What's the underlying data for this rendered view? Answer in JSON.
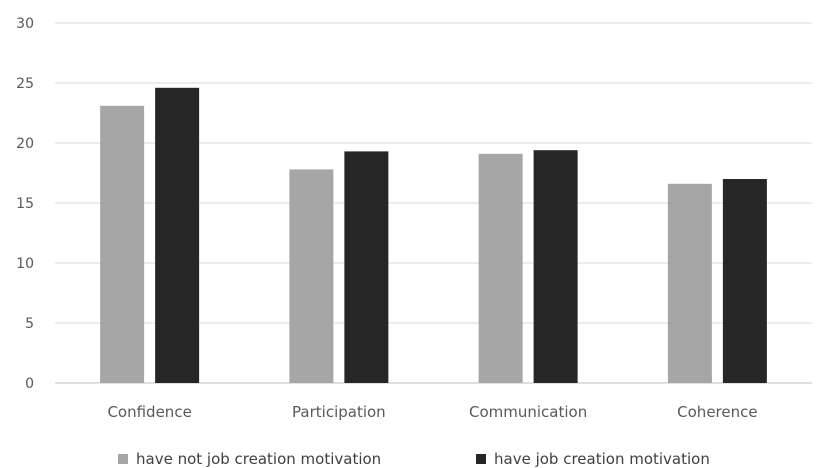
{
  "chart_data": {
    "type": "bar",
    "title": "",
    "xlabel": "",
    "ylabel": "",
    "categories": [
      "Confidence",
      "Participation",
      "Communication",
      "Coherence"
    ],
    "series": [
      {
        "name": "have not job creation motivation",
        "values": [
          23.1,
          17.8,
          19.1,
          16.6
        ],
        "color": "#a6a6a6"
      },
      {
        "name": "have job creation motivation",
        "values": [
          24.6,
          19.3,
          19.4,
          17.0
        ],
        "color": "#262626"
      }
    ],
    "ylim": [
      0,
      30
    ],
    "yticks": [
      "0",
      "5",
      "10",
      "15",
      "20",
      "25",
      "30"
    ],
    "grid": true,
    "legend_position": "bottom"
  }
}
